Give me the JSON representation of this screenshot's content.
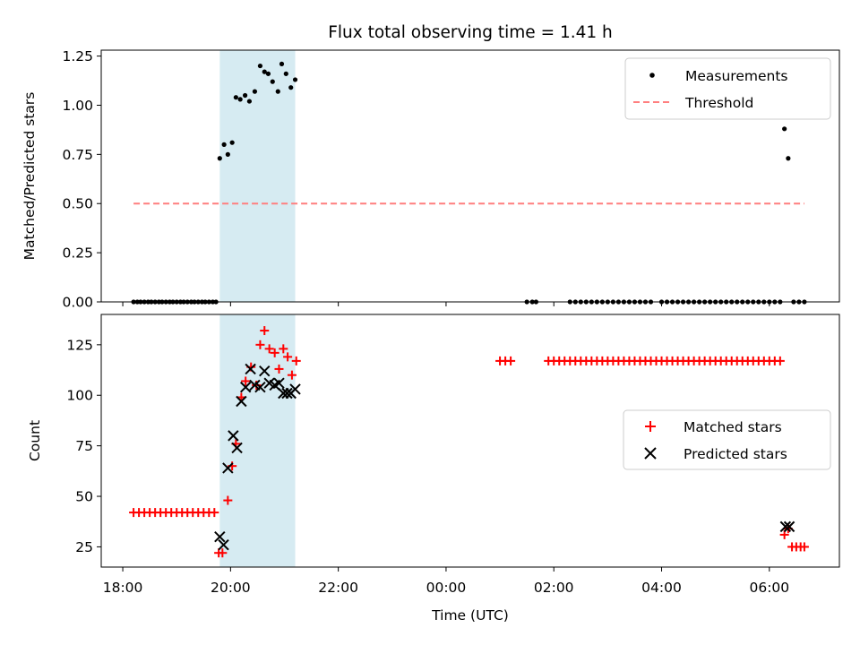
{
  "chart_data": [
    {
      "type": "scatter",
      "title": "Flux total observing time = 1.41 h",
      "xlabel": "",
      "ylabel": "Matched/Predicted stars",
      "ylim": [
        0,
        1.28
      ],
      "yticks": [
        0.0,
        0.25,
        0.5,
        0.75,
        1.0,
        1.25
      ],
      "ytick_labels": [
        "0.00",
        "0.25",
        "0.50",
        "0.75",
        "1.00",
        "1.25"
      ],
      "shaded_span": {
        "start_h": 19.8,
        "end_h": 21.2,
        "color": "#add8e6"
      },
      "legend_position": "top-right",
      "series": [
        {
          "name": "Measurements",
          "style": "dot",
          "color": "#000000",
          "x": [
            18.2,
            18.27,
            18.33,
            18.4,
            18.47,
            18.53,
            18.6,
            18.67,
            18.73,
            18.8,
            18.87,
            18.93,
            19.0,
            19.07,
            19.13,
            19.2,
            19.27,
            19.33,
            19.4,
            19.47,
            19.53,
            19.6,
            19.67,
            19.73,
            19.8,
            19.88,
            19.95,
            20.03,
            20.1,
            20.18,
            20.27,
            20.35,
            20.45,
            20.55,
            20.63,
            20.7,
            20.78,
            20.88,
            20.95,
            21.03,
            21.12,
            21.2,
            23.0,
            25.5,
            25.6,
            25.67,
            26.3,
            26.4,
            26.5,
            26.6,
            26.7,
            26.8,
            26.9,
            27.0,
            27.1,
            27.2,
            27.3,
            27.4,
            27.5,
            27.6,
            27.7,
            27.8,
            28.0,
            28.1,
            28.2,
            28.3,
            28.4,
            28.5,
            28.6,
            28.7,
            28.8,
            28.9,
            29.0,
            29.1,
            29.2,
            29.3,
            29.4,
            29.5,
            29.6,
            29.7,
            29.8,
            29.9,
            30.0,
            30.1,
            30.2,
            30.28,
            30.35,
            30.45,
            30.55,
            30.65
          ],
          "y": [
            0,
            0,
            0,
            0,
            0,
            0,
            0,
            0,
            0,
            0,
            0,
            0,
            0,
            0,
            0,
            0,
            0,
            0,
            0,
            0,
            0,
            0,
            0,
            0,
            0.73,
            0.8,
            0.75,
            0.81,
            1.04,
            1.03,
            1.05,
            1.02,
            1.07,
            1.2,
            1.17,
            1.16,
            1.12,
            1.07,
            1.21,
            1.16,
            1.09,
            1.13,
            null,
            0,
            0,
            0,
            0,
            0,
            0,
            0,
            0,
            0,
            0,
            0,
            0,
            0,
            0,
            0,
            0,
            0,
            0,
            0,
            0,
            0,
            0,
            0,
            0,
            0,
            0,
            0,
            0,
            0,
            0,
            0,
            0,
            0,
            0,
            0,
            0,
            0,
            0,
            0,
            0,
            0,
            0,
            0.88,
            0.73,
            0,
            0,
            0
          ]
        },
        {
          "name": "Threshold",
          "style": "dashed-line",
          "color": "#ff7f7f",
          "x": [
            18.2,
            30.65
          ],
          "y": [
            0.5,
            0.5
          ]
        }
      ]
    },
    {
      "type": "scatter",
      "title": "",
      "xlabel": "Time (UTC)",
      "ylabel": "Count",
      "ylim": [
        15,
        140
      ],
      "yticks": [
        25,
        50,
        75,
        100,
        125
      ],
      "ytick_labels": [
        "25",
        "50",
        "75",
        "100",
        "125"
      ],
      "xlim": [
        17.6,
        31.3
      ],
      "xticks": [
        18,
        20,
        22,
        24,
        26,
        28,
        30
      ],
      "xtick_labels": [
        "18:00",
        "20:00",
        "22:00",
        "00:00",
        "02:00",
        "04:00",
        "06:00"
      ],
      "shaded_span": {
        "start_h": 19.8,
        "end_h": 21.2,
        "color": "#add8e6"
      },
      "legend_position": "center-right",
      "series": [
        {
          "name": "Matched stars",
          "style": "plus",
          "color": "#ff0000",
          "x": [
            18.2,
            18.3,
            18.4,
            18.5,
            18.6,
            18.7,
            18.8,
            18.9,
            19.0,
            19.1,
            19.2,
            19.3,
            19.4,
            19.5,
            19.6,
            19.7,
            19.78,
            19.85,
            19.95,
            20.03,
            20.1,
            20.2,
            20.28,
            20.38,
            20.48,
            20.55,
            20.63,
            20.72,
            20.82,
            20.9,
            20.98,
            21.06,
            21.14,
            21.22,
            25.0,
            25.1,
            25.2,
            25.9,
            26.0,
            26.1,
            26.2,
            26.3,
            26.4,
            26.5,
            26.6,
            26.7,
            26.8,
            26.9,
            27.0,
            27.1,
            27.2,
            27.3,
            27.4,
            27.5,
            27.6,
            27.7,
            27.8,
            27.9,
            28.0,
            28.1,
            28.2,
            28.3,
            28.4,
            28.5,
            28.6,
            28.7,
            28.8,
            28.9,
            29.0,
            29.1,
            29.2,
            29.3,
            29.4,
            29.5,
            29.6,
            29.7,
            29.8,
            29.9,
            30.0,
            30.1,
            30.2,
            30.28,
            30.35,
            30.42,
            30.5,
            30.58,
            30.65
          ],
          "y": [
            42,
            42,
            42,
            42,
            42,
            42,
            42,
            42,
            42,
            42,
            42,
            42,
            42,
            42,
            42,
            42,
            22,
            22,
            48,
            65,
            76,
            99,
            107,
            114,
            105,
            125,
            132,
            123,
            121,
            113,
            123,
            119,
            110,
            117,
            117,
            117,
            117,
            117,
            117,
            117,
            117,
            117,
            117,
            117,
            117,
            117,
            117,
            117,
            117,
            117,
            117,
            117,
            117,
            117,
            117,
            117,
            117,
            117,
            117,
            117,
            117,
            117,
            117,
            117,
            117,
            117,
            117,
            117,
            117,
            117,
            117,
            117,
            117,
            117,
            117,
            117,
            117,
            117,
            117,
            117,
            117,
            31,
            34,
            25,
            25,
            25,
            25
          ]
        },
        {
          "name": "Predicted stars",
          "style": "x",
          "color": "#000000",
          "x": [
            19.8,
            19.87,
            19.95,
            20.05,
            20.12,
            20.2,
            20.28,
            20.37,
            20.45,
            20.55,
            20.63,
            20.72,
            20.82,
            20.9,
            20.98,
            21.05,
            21.12,
            21.2,
            30.3,
            30.37
          ],
          "y": [
            30,
            26,
            64,
            80,
            74,
            97,
            104,
            113,
            105,
            104,
            112,
            106,
            105,
            106,
            101,
            101,
            101,
            103,
            35,
            35
          ]
        }
      ]
    }
  ]
}
